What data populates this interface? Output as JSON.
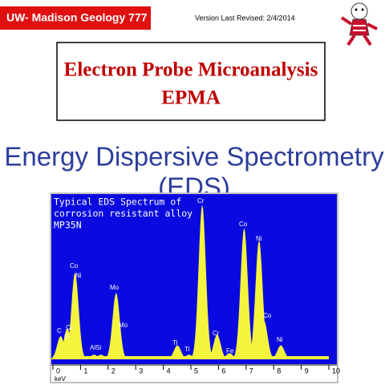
{
  "header": {
    "course": "UW- Madison Geology  777",
    "version": "Version Last Revised:  2/4/2014"
  },
  "title_box": {
    "line1": "Electron Probe Microanalysis",
    "line2": "EPMA"
  },
  "heading": {
    "line1": "Energy Dispersive Spectrometry",
    "line2": "(EDS)"
  },
  "chart_data": {
    "type": "spectrum",
    "title_lines": [
      "Typical EDS Spectrum of",
      "corrosion resistant alloy",
      "MP35N"
    ],
    "xlabel": "keV",
    "xlim": [
      0,
      10
    ],
    "xticks": [
      0,
      1,
      2,
      3,
      4,
      5,
      6,
      7,
      8,
      9,
      10
    ],
    "ylim": [
      0,
      100
    ],
    "color": "#f4f43c",
    "background": "#0a0ae0",
    "peaks": [
      {
        "x": 0.28,
        "height": 15
      },
      {
        "x": 0.52,
        "height": 20
      },
      {
        "x": 0.6,
        "height": 12
      },
      {
        "x": 0.8,
        "height": 56
      },
      {
        "x": 1.49,
        "height": 3
      },
      {
        "x": 1.74,
        "height": 3
      },
      {
        "x": 2.29,
        "height": 43
      },
      {
        "x": 4.51,
        "height": 9
      },
      {
        "x": 4.93,
        "height": 3
      },
      {
        "x": 5.41,
        "height": 100
      },
      {
        "x": 5.95,
        "height": 16
      },
      {
        "x": 6.4,
        "height": 4
      },
      {
        "x": 6.93,
        "height": 85
      },
      {
        "x": 7.47,
        "height": 77
      },
      {
        "x": 7.65,
        "height": 25
      },
      {
        "x": 8.26,
        "height": 9
      }
    ],
    "labels": [
      "C",
      "O",
      "Cr",
      "Co",
      "Ni",
      "Mo",
      "Mo",
      "AlSi",
      "Ti",
      "Ti",
      "Cr",
      "Cr",
      "Fe",
      "Co",
      "Ni",
      "Co",
      "Ni"
    ]
  }
}
